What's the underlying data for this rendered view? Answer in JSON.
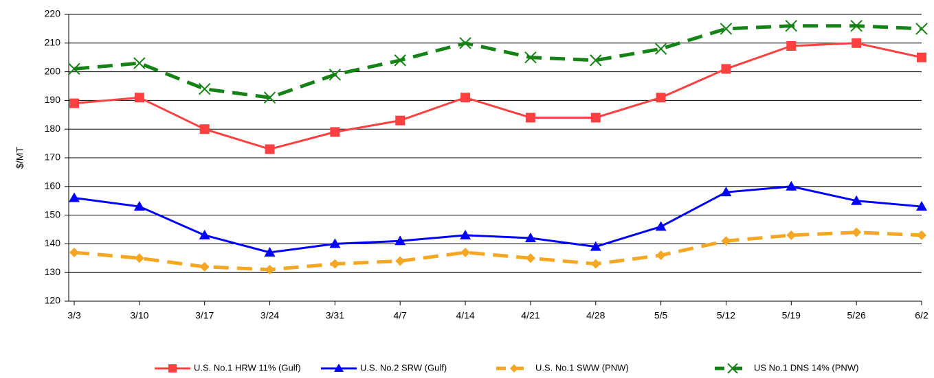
{
  "chart_data": {
    "type": "line",
    "y_label": "$/MT",
    "categories": [
      "3/3",
      "3/10",
      "3/17",
      "3/24",
      "3/31",
      "4/7",
      "4/14",
      "4/21",
      "4/28",
      "5/5",
      "5/12",
      "5/19",
      "5/26",
      "6/2"
    ],
    "ylim": [
      120,
      220
    ],
    "yticks": [
      120,
      130,
      140,
      150,
      160,
      170,
      180,
      190,
      200,
      210,
      220
    ],
    "grid": true,
    "legend": "bottom",
    "series": [
      {
        "name": "U.S. No.1 HRW 11% (Gulf)",
        "color": "#ff4040",
        "marker": "square",
        "dashed": false,
        "values": [
          189,
          191,
          180,
          173,
          179,
          183,
          191,
          184,
          184,
          191,
          201,
          209,
          210,
          205
        ]
      },
      {
        "name": "U.S. No.2 SRW (Gulf)",
        "color": "#0000ff",
        "marker": "triangle",
        "dashed": false,
        "values": [
          156,
          153,
          143,
          137,
          140,
          141,
          143,
          142,
          139,
          146,
          158,
          160,
          155,
          153
        ]
      },
      {
        "name": "U.S. No.1 SWW (PNW)",
        "color": "#f5a623",
        "marker": "diamond",
        "dashed": true,
        "values": [
          137,
          135,
          132,
          131,
          133,
          134,
          137,
          135,
          133,
          136,
          141,
          143,
          144,
          143
        ]
      },
      {
        "name": "US No.1 DNS 14% (PNW)",
        "color": "#148214",
        "marker": "x",
        "dashed": true,
        "values": [
          201,
          203,
          194,
          191,
          199,
          204,
          210,
          205,
          204,
          208,
          215,
          216,
          216,
          215
        ]
      }
    ]
  }
}
